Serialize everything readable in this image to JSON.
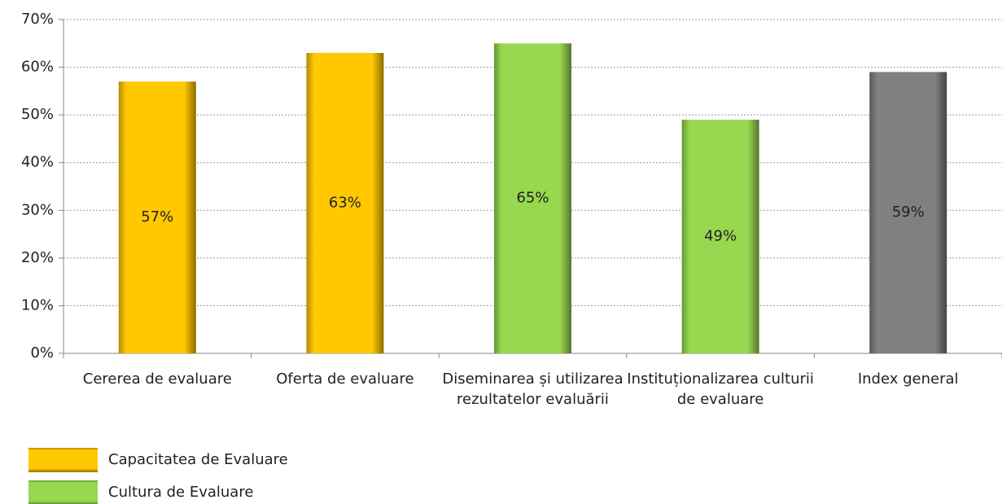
{
  "chart_data": {
    "type": "bar",
    "categories": [
      "Cererea de evaluare",
      "Oferta de evaluare",
      "Diseminarea și utilizarea rezultatelor evaluării",
      "Instituționalizarea culturii de evaluare",
      "Index general"
    ],
    "values": [
      57,
      63,
      65,
      49,
      59
    ],
    "value_labels": [
      "57%",
      "63%",
      "65%",
      "49%",
      "59%"
    ],
    "colors": [
      "#ffc800",
      "#ffc800",
      "#98d850",
      "#98d850",
      "#808080"
    ],
    "ylim": [
      0,
      70
    ],
    "yticks": [
      {
        "value": 0,
        "label": "0%"
      },
      {
        "value": 10,
        "label": "10%"
      },
      {
        "value": 20,
        "label": "20%"
      },
      {
        "value": 30,
        "label": "30%"
      },
      {
        "value": 40,
        "label": "40%"
      },
      {
        "value": 50,
        "label": "50%"
      },
      {
        "value": 60,
        "label": "60%"
      },
      {
        "value": 70,
        "label": "70%"
      }
    ],
    "grid": true,
    "legend": [
      {
        "name": "Capacitatea de Evaluare",
        "color": "#ffc800"
      },
      {
        "name": "Cultura de Evaluare",
        "color": "#98d850"
      }
    ]
  }
}
